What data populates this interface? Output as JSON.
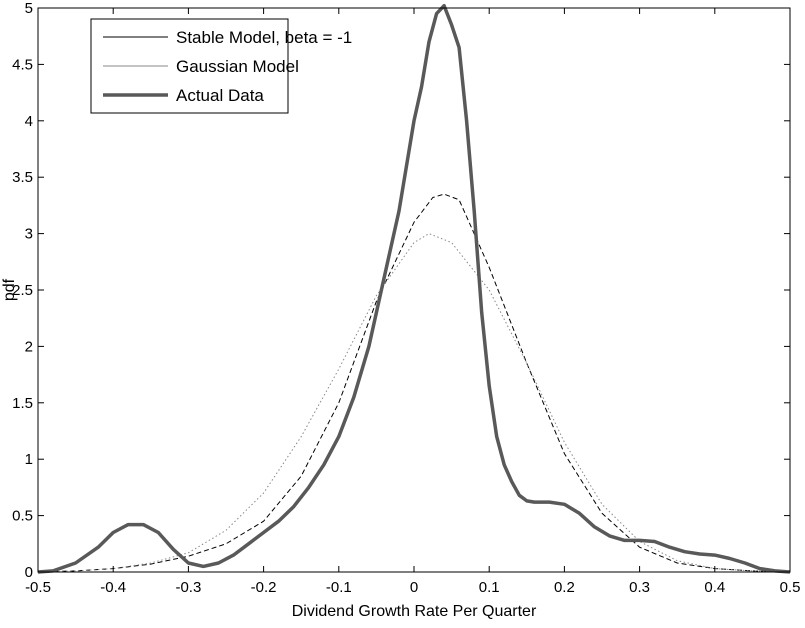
{
  "chart_data": {
    "type": "line",
    "title": "",
    "xlabel": "Dividend Growth Rate Per Quarter",
    "ylabel": "pdf",
    "xlim": [
      -0.5,
      0.5
    ],
    "ylim": [
      0,
      5
    ],
    "xticks": [
      -0.5,
      -0.4,
      -0.3,
      -0.2,
      -0.1,
      0,
      0.1,
      0.2,
      0.3,
      0.4,
      0.5
    ],
    "yticks": [
      0,
      0.5,
      1,
      1.5,
      2,
      2.5,
      3,
      3.5,
      4,
      4.5,
      5
    ],
    "xtick_labels": [
      "-0.5",
      "-0.4",
      "-0.3",
      "-0.2",
      "-0.1",
      "0",
      "0.1",
      "0.2",
      "0.3",
      "0.4",
      "0.5"
    ],
    "ytick_labels": [
      "0",
      "0.5",
      "1",
      "1.5",
      "2",
      "2.5",
      "3",
      "3.5",
      "4",
      "4.5",
      "5"
    ],
    "grid": false,
    "legend_position": "top-left",
    "series": [
      {
        "name": "Stable Model, beta = -1",
        "style": "dashed",
        "color": "#000000",
        "x": [
          -0.5,
          -0.45,
          -0.4,
          -0.35,
          -0.3,
          -0.25,
          -0.2,
          -0.15,
          -0.1,
          -0.05,
          0,
          0.025,
          0.04,
          0.06,
          0.1,
          0.15,
          0.2,
          0.25,
          0.3,
          0.35,
          0.4,
          0.45,
          0.5
        ],
        "y": [
          0.0,
          0.01,
          0.03,
          0.07,
          0.14,
          0.25,
          0.45,
          0.85,
          1.5,
          2.4,
          3.1,
          3.32,
          3.35,
          3.3,
          2.7,
          1.85,
          1.05,
          0.52,
          0.22,
          0.08,
          0.03,
          0.01,
          0.0
        ]
      },
      {
        "name": "Gaussian Model",
        "style": "dotted",
        "color": "#888888",
        "x": [
          -0.5,
          -0.45,
          -0.4,
          -0.35,
          -0.3,
          -0.25,
          -0.2,
          -0.15,
          -0.1,
          -0.05,
          0,
          0.02,
          0.05,
          0.1,
          0.15,
          0.2,
          0.25,
          0.3,
          0.35,
          0.4,
          0.45,
          0.5
        ],
        "y": [
          0.0,
          0.01,
          0.03,
          0.08,
          0.17,
          0.37,
          0.7,
          1.2,
          1.8,
          2.45,
          2.92,
          3.0,
          2.92,
          2.5,
          1.85,
          1.15,
          0.6,
          0.27,
          0.1,
          0.03,
          0.01,
          0.0
        ]
      },
      {
        "name": "Actual Data",
        "style": "solid-thick",
        "color": "#595959",
        "x": [
          -0.5,
          -0.48,
          -0.45,
          -0.42,
          -0.4,
          -0.38,
          -0.36,
          -0.34,
          -0.32,
          -0.3,
          -0.28,
          -0.26,
          -0.24,
          -0.22,
          -0.2,
          -0.18,
          -0.16,
          -0.14,
          -0.12,
          -0.1,
          -0.08,
          -0.06,
          -0.04,
          -0.02,
          0,
          0.01,
          0.02,
          0.03,
          0.04,
          0.05,
          0.06,
          0.07,
          0.08,
          0.09,
          0.1,
          0.11,
          0.12,
          0.13,
          0.14,
          0.15,
          0.16,
          0.18,
          0.2,
          0.22,
          0.24,
          0.26,
          0.28,
          0.3,
          0.32,
          0.34,
          0.36,
          0.38,
          0.4,
          0.42,
          0.44,
          0.46,
          0.48,
          0.5
        ],
        "y": [
          0.0,
          0.01,
          0.08,
          0.22,
          0.35,
          0.42,
          0.42,
          0.35,
          0.2,
          0.08,
          0.05,
          0.08,
          0.15,
          0.25,
          0.35,
          0.45,
          0.58,
          0.75,
          0.95,
          1.2,
          1.55,
          2.0,
          2.6,
          3.2,
          4.0,
          4.3,
          4.7,
          4.95,
          5.02,
          4.85,
          4.65,
          4.0,
          3.2,
          2.3,
          1.65,
          1.2,
          0.95,
          0.8,
          0.68,
          0.63,
          0.62,
          0.62,
          0.6,
          0.52,
          0.4,
          0.32,
          0.28,
          0.28,
          0.27,
          0.22,
          0.18,
          0.16,
          0.15,
          0.12,
          0.08,
          0.03,
          0.01,
          0.0
        ]
      }
    ]
  }
}
